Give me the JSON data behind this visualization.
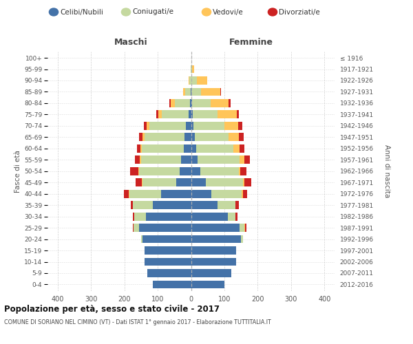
{
  "age_groups": [
    "0-4",
    "5-9",
    "10-14",
    "15-19",
    "20-24",
    "25-29",
    "30-34",
    "35-39",
    "40-44",
    "45-49",
    "50-54",
    "55-59",
    "60-64",
    "65-69",
    "70-74",
    "75-79",
    "80-84",
    "85-89",
    "90-94",
    "95-99",
    "100+"
  ],
  "birth_years": [
    "2012-2016",
    "2007-2011",
    "2002-2006",
    "1997-2001",
    "1992-1996",
    "1987-1991",
    "1982-1986",
    "1977-1981",
    "1972-1976",
    "1967-1971",
    "1962-1966",
    "1957-1961",
    "1952-1956",
    "1947-1951",
    "1942-1946",
    "1937-1941",
    "1932-1936",
    "1927-1931",
    "1922-1926",
    "1917-1921",
    "≤ 1916"
  ],
  "male_celibi": [
    115,
    130,
    140,
    140,
    145,
    155,
    135,
    115,
    90,
    45,
    35,
    30,
    22,
    20,
    15,
    8,
    4,
    2,
    0,
    0,
    0
  ],
  "male_coniugati": [
    0,
    0,
    0,
    0,
    5,
    18,
    35,
    60,
    95,
    100,
    120,
    120,
    125,
    120,
    110,
    80,
    45,
    15,
    5,
    2,
    0
  ],
  "male_vedovi": [
    0,
    0,
    0,
    0,
    0,
    0,
    0,
    0,
    2,
    2,
    2,
    3,
    4,
    5,
    8,
    10,
    12,
    6,
    2,
    0,
    0
  ],
  "male_divorziati": [
    0,
    0,
    0,
    0,
    0,
    2,
    5,
    5,
    15,
    18,
    25,
    15,
    10,
    10,
    8,
    6,
    3,
    0,
    0,
    0,
    0
  ],
  "female_nubili": [
    100,
    120,
    135,
    135,
    150,
    145,
    110,
    80,
    60,
    45,
    28,
    20,
    15,
    12,
    8,
    5,
    3,
    2,
    2,
    0,
    0
  ],
  "female_coniugate": [
    0,
    0,
    0,
    0,
    5,
    14,
    22,
    52,
    92,
    110,
    115,
    125,
    112,
    100,
    92,
    75,
    55,
    28,
    15,
    4,
    0
  ],
  "female_vedove": [
    0,
    0,
    0,
    0,
    0,
    2,
    2,
    2,
    4,
    4,
    5,
    14,
    18,
    32,
    42,
    58,
    55,
    58,
    32,
    5,
    0
  ],
  "female_divorziate": [
    0,
    0,
    0,
    0,
    0,
    5,
    5,
    10,
    12,
    22,
    18,
    18,
    14,
    14,
    12,
    5,
    5,
    2,
    0,
    0,
    0
  ],
  "colors": {
    "celibi": "#4472a8",
    "coniugati": "#c5d9a0",
    "vedovi": "#ffc55a",
    "divorziati": "#cc2222"
  },
  "xlim": 430,
  "title": "Popolazione per età, sesso e stato civile - 2017",
  "subtitle": "COMUNE DI SORIANO NEL CIMINO (VT) - Dati ISTAT 1° gennaio 2017 - Elaborazione TUTTITALIA.IT",
  "ylabel": "Fasce di età",
  "ylabel_right": "Anni di nascita",
  "legend_labels": [
    "Celibi/Nubili",
    "Coniugati/e",
    "Vedovi/e",
    "Divorziati/e"
  ],
  "maschi_label": "Maschi",
  "femmine_label": "Femmine",
  "bg_color": "#ffffff",
  "grid_color": "#cccccc",
  "label_color": "#555555"
}
